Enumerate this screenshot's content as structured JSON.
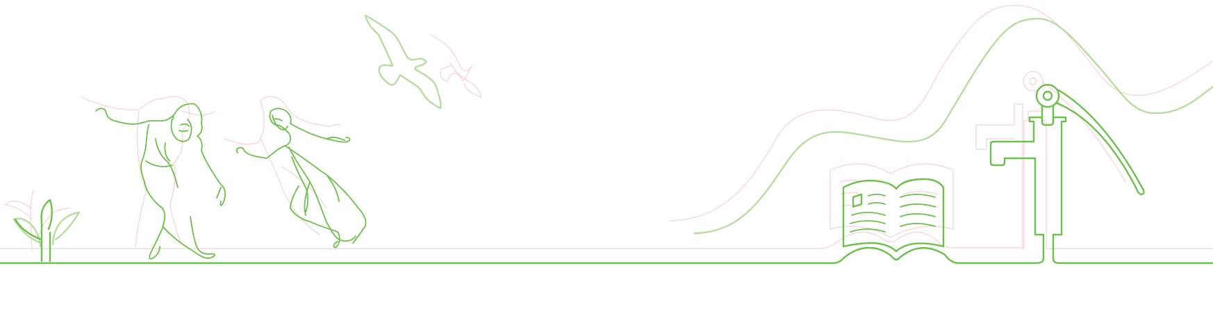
{
  "banner": {
    "colors": {
      "primary_line": "#6cbf4b",
      "light_line": "#b6dd9e",
      "ghost_line": "#f7d8dc",
      "background": "#ffffff"
    },
    "elements": [
      "ground-line",
      "plant-icon",
      "dancing-figures",
      "flying-birds",
      "hill-wave",
      "open-book-icon",
      "water-tap-icon"
    ]
  }
}
